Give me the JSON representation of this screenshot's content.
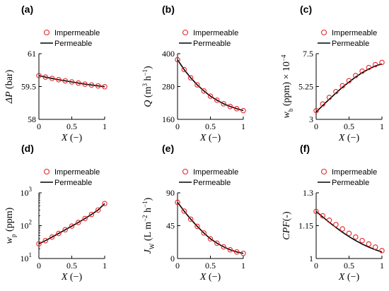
{
  "chart_data": [
    {
      "type": "line",
      "panel": "(a)",
      "xlabel": "X (−)",
      "ylabel_parts": [
        {
          "t": "ΔP",
          "it": true
        },
        {
          "t": " (bar)"
        }
      ],
      "xlim": [
        0,
        1
      ],
      "ylim": [
        58,
        61
      ],
      "xticks": [
        0,
        0.5,
        1
      ],
      "xtick_labels": [
        "0",
        "0.5",
        "1"
      ],
      "yticks": [
        58,
        59.5,
        61
      ],
      "ytick_labels": [
        "58",
        "59.5",
        "61"
      ],
      "log_y": false,
      "series": [
        {
          "name": "Impermeable",
          "style": "markers",
          "x": [
            0,
            0.1,
            0.2,
            0.3,
            0.4,
            0.5,
            0.6,
            0.7,
            0.8,
            0.9,
            1.0
          ],
          "y": [
            60.0,
            59.93,
            59.87,
            59.81,
            59.76,
            59.71,
            59.66,
            59.61,
            59.57,
            59.53,
            59.49
          ]
        },
        {
          "name": "Permeable",
          "style": "line",
          "x": [
            0,
            0.1,
            0.2,
            0.3,
            0.4,
            0.5,
            0.6,
            0.7,
            0.8,
            0.9,
            1.0
          ],
          "y": [
            60.0,
            59.93,
            59.87,
            59.81,
            59.76,
            59.71,
            59.66,
            59.61,
            59.57,
            59.53,
            59.49
          ]
        }
      ]
    },
    {
      "type": "line",
      "panel": "(b)",
      "xlabel": "X (−)",
      "ylabel_parts": [
        {
          "t": "Q",
          "it": true
        },
        {
          "t": " (m"
        },
        {
          "t": "3",
          "sup": true
        },
        {
          "t": " h"
        },
        {
          "t": "−1",
          "sup": true
        },
        {
          "t": ")"
        }
      ],
      "xlim": [
        0,
        1
      ],
      "ylim": [
        160,
        400
      ],
      "xticks": [
        0,
        0.5,
        1
      ],
      "xtick_labels": [
        "0",
        "0.5",
        "1"
      ],
      "yticks": [
        160,
        280,
        400
      ],
      "ytick_labels": [
        "160",
        "280",
        "400"
      ],
      "log_y": false,
      "series": [
        {
          "name": "Impermeable",
          "style": "markers",
          "x": [
            0,
            0.1,
            0.2,
            0.3,
            0.4,
            0.5,
            0.6,
            0.7,
            0.8,
            0.9,
            1.0
          ],
          "y": [
            378,
            342,
            312,
            286,
            264,
            245,
            230,
            217,
            207,
            199,
            192
          ]
        },
        {
          "name": "Permeable",
          "style": "line",
          "x": [
            0,
            0.1,
            0.2,
            0.3,
            0.4,
            0.5,
            0.6,
            0.7,
            0.8,
            0.9,
            1.0
          ],
          "y": [
            378,
            342,
            312,
            286,
            264,
            245,
            230,
            217,
            207,
            199,
            192
          ]
        }
      ]
    },
    {
      "type": "line",
      "panel": "(c)",
      "xlabel": "X (−)",
      "ylabel_parts": [
        {
          "t": "w",
          "it": true
        },
        {
          "t": "b",
          "sub": true
        },
        {
          "t": " (ppm) × 10"
        },
        {
          "t": "−4",
          "sup": true
        }
      ],
      "xlim": [
        0,
        1
      ],
      "ylim": [
        3,
        7.5
      ],
      "xticks": [
        0,
        0.5,
        1
      ],
      "xtick_labels": [
        "0",
        "0.5",
        "1"
      ],
      "yticks": [
        3,
        5.25,
        7.5
      ],
      "ytick_labels": [
        "3",
        "5.25",
        "7.5"
      ],
      "log_y": false,
      "series": [
        {
          "name": "Impermeable",
          "style": "markers",
          "x": [
            0,
            0.1,
            0.2,
            0.3,
            0.4,
            0.5,
            0.6,
            0.7,
            0.8,
            0.9,
            1.0
          ],
          "y": [
            3.6,
            4.05,
            4.5,
            4.9,
            5.3,
            5.65,
            6.0,
            6.3,
            6.55,
            6.75,
            6.9
          ]
        },
        {
          "name": "Permeable",
          "style": "line",
          "x": [
            0,
            0.1,
            0.2,
            0.3,
            0.4,
            0.5,
            0.6,
            0.7,
            0.8,
            0.9,
            1.0
          ],
          "y": [
            3.5,
            3.95,
            4.38,
            4.8,
            5.2,
            5.56,
            5.9,
            6.2,
            6.45,
            6.66,
            6.8
          ]
        }
      ]
    },
    {
      "type": "line",
      "panel": "(d)",
      "xlabel": "X (−)",
      "ylabel_parts": [
        {
          "t": "w",
          "it": true
        },
        {
          "t": "p",
          "sub": true
        },
        {
          "t": " (ppm)"
        }
      ],
      "xlim": [
        0,
        1
      ],
      "ylim": [
        10,
        1000
      ],
      "xticks": [
        0,
        0.5,
        1
      ],
      "xtick_labels": [
        "0",
        "0.5",
        "1"
      ],
      "yticks": [
        10,
        100,
        1000
      ],
      "ytick_labels": [
        "10",
        "10",
        "10"
      ],
      "ytick_exps": [
        "1",
        "2",
        "3"
      ],
      "log_y": true,
      "series": [
        {
          "name": "Impermeable",
          "style": "markers",
          "x": [
            0,
            0.1,
            0.2,
            0.3,
            0.4,
            0.5,
            0.6,
            0.7,
            0.8,
            0.9,
            1.0
          ],
          "y": [
            28,
            35,
            45,
            58,
            75,
            97,
            125,
            165,
            220,
            300,
            470
          ]
        },
        {
          "name": "Permeable",
          "style": "line",
          "x": [
            0,
            0.1,
            0.2,
            0.3,
            0.4,
            0.5,
            0.6,
            0.7,
            0.8,
            0.9,
            1.0
          ],
          "y": [
            28,
            35,
            45,
            58,
            75,
            97,
            125,
            165,
            220,
            300,
            470
          ]
        }
      ]
    },
    {
      "type": "line",
      "panel": "(e)",
      "xlabel": "X (−)",
      "ylabel_parts": [
        {
          "t": "J",
          "it": true
        },
        {
          "t": "W",
          "sub": true
        },
        {
          "t": " (L m"
        },
        {
          "t": "−2",
          "sup": true
        },
        {
          "t": " h"
        },
        {
          "t": "−1",
          "sup": true
        },
        {
          "t": ")"
        }
      ],
      "xlim": [
        0,
        1
      ],
      "ylim": [
        0,
        90
      ],
      "xticks": [
        0,
        0.5,
        1
      ],
      "xtick_labels": [
        "0",
        "0.5",
        "1"
      ],
      "yticks": [
        0,
        45,
        90
      ],
      "ytick_labels": [
        "0",
        "45",
        "90"
      ],
      "log_y": false,
      "series": [
        {
          "name": "Impermeable",
          "style": "markers",
          "x": [
            0,
            0.1,
            0.2,
            0.3,
            0.4,
            0.5,
            0.6,
            0.7,
            0.8,
            0.9,
            1.0
          ],
          "y": [
            77,
            65,
            54,
            44,
            35,
            27,
            21,
            16,
            12,
            9,
            7
          ]
        },
        {
          "name": "Permeable",
          "style": "line",
          "x": [
            0,
            0.1,
            0.2,
            0.3,
            0.4,
            0.5,
            0.6,
            0.7,
            0.8,
            0.9,
            1.0
          ],
          "y": [
            77,
            65,
            54,
            44,
            35,
            27,
            21,
            16,
            12,
            9,
            7
          ]
        }
      ]
    },
    {
      "type": "line",
      "panel": "(f)",
      "xlabel": "X (−)",
      "ylabel_parts": [
        {
          "t": "CPF",
          "it": true
        },
        {
          "t": "(-)"
        }
      ],
      "xlim": [
        0,
        1
      ],
      "ylim": [
        1,
        1.3
      ],
      "xticks": [
        0,
        0.5,
        1
      ],
      "xtick_labels": [
        "0",
        "0.5",
        "1"
      ],
      "yticks": [
        1,
        1.15,
        1.3
      ],
      "ytick_labels": [
        "1",
        "1.15",
        "1.3"
      ],
      "log_y": false,
      "series": [
        {
          "name": "Impermeable",
          "style": "markers",
          "x": [
            0,
            0.1,
            0.2,
            0.3,
            0.4,
            0.5,
            0.6,
            0.7,
            0.8,
            0.9,
            1.0
          ],
          "y": [
            1.215,
            1.195,
            1.175,
            1.155,
            1.135,
            1.115,
            1.098,
            1.082,
            1.066,
            1.052,
            1.036
          ]
        },
        {
          "name": "Permeable",
          "style": "line",
          "x": [
            0,
            0.1,
            0.2,
            0.3,
            0.4,
            0.5,
            0.6,
            0.7,
            0.8,
            0.9,
            1.0
          ],
          "y": [
            1.215,
            1.19,
            1.165,
            1.142,
            1.12,
            1.1,
            1.082,
            1.066,
            1.052,
            1.04,
            1.03
          ]
        }
      ]
    }
  ],
  "colors": {
    "marker": "#e8262a",
    "line": "#000000",
    "axis": "#000000"
  }
}
